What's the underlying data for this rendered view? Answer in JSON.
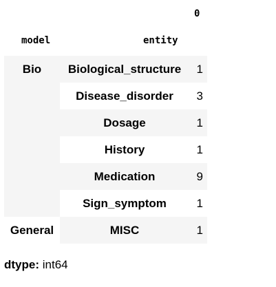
{
  "table": {
    "column_header": "0",
    "index_headers": [
      "model",
      "entity"
    ],
    "groups": [
      {
        "model": "Bio",
        "rows": [
          {
            "entity": "Biological_structure",
            "value": "1"
          },
          {
            "entity": "Disease_disorder",
            "value": "3"
          },
          {
            "entity": "Dosage",
            "value": "1"
          },
          {
            "entity": "History",
            "value": "1"
          },
          {
            "entity": "Medication",
            "value": "9"
          },
          {
            "entity": "Sign_symptom",
            "value": "1"
          }
        ]
      },
      {
        "model": "General",
        "rows": [
          {
            "entity": "MISC",
            "value": "1"
          }
        ]
      }
    ]
  },
  "dtype": {
    "label": "dtype:",
    "value": "int64"
  }
}
